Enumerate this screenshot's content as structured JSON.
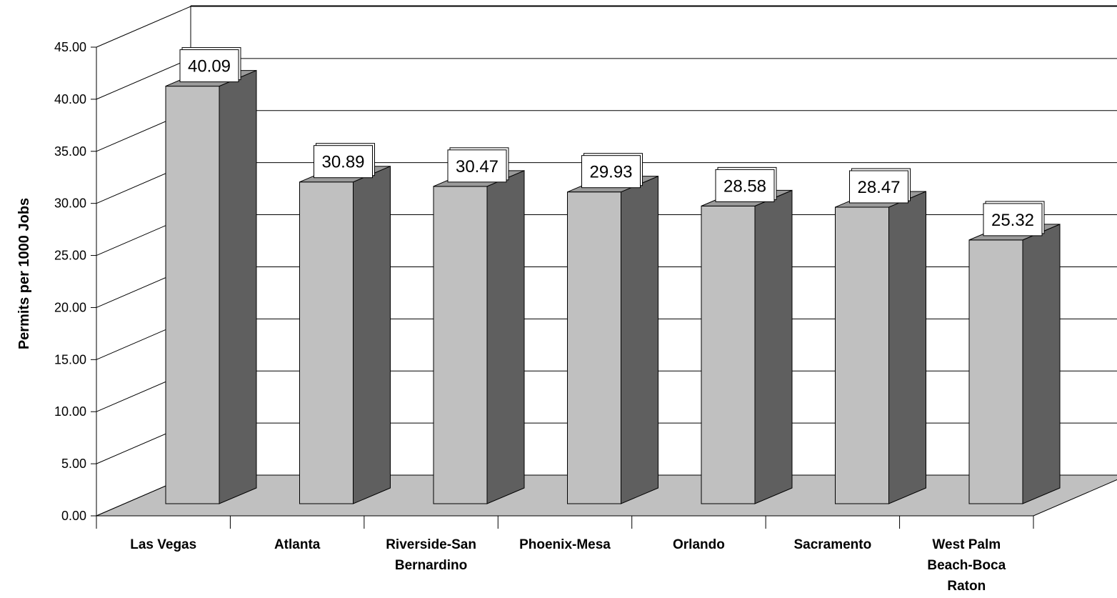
{
  "chart_data": {
    "type": "bar",
    "title": "",
    "xlabel": "",
    "ylabel": "Permits per 1000 Jobs",
    "ylim": [
      0,
      45
    ],
    "yticks": [
      "0.00",
      "5.00",
      "10.00",
      "15.00",
      "20.00",
      "25.00",
      "30.00",
      "35.00",
      "40.00",
      "45.00"
    ],
    "categories": [
      [
        "Las Vegas"
      ],
      [
        "Atlanta"
      ],
      [
        "Riverside-San",
        "Bernardino"
      ],
      [
        "Phoenix-Mesa"
      ],
      [
        "Orlando"
      ],
      [
        "Sacramento"
      ],
      [
        "West Palm",
        "Beach-Boca",
        "Raton"
      ]
    ],
    "values": [
      40.09,
      30.89,
      30.47,
      29.93,
      28.58,
      28.47,
      25.32
    ],
    "data_labels": [
      "40.09",
      "30.89",
      "30.47",
      "29.93",
      "28.58",
      "28.47",
      "25.32"
    ],
    "grid": true,
    "legend": "none",
    "colors": {
      "bar_front": "#c0c0c0",
      "bar_side": "#5f5f5f",
      "bar_top": "#9a9a9a",
      "floor": "#c0c0c0"
    }
  }
}
